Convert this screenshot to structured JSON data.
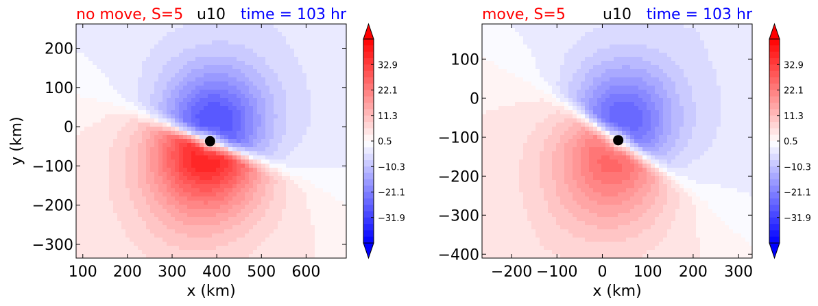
{
  "chart_data": [
    {
      "type": "heatmap",
      "title_left": "no move, S=5",
      "title_center": "u10",
      "title_right": "time = 103 hr",
      "title_colors": {
        "left": "#ff0000",
        "center": "#000000",
        "right": "#0000ff"
      },
      "xlabel": "x (km)",
      "ylabel": "y (km)",
      "xlim": [
        85,
        690
      ],
      "ylim": [
        -335,
        262
      ],
      "xticks": [
        100,
        200,
        300,
        400,
        500,
        600
      ],
      "yticks": [
        200,
        100,
        0,
        -100,
        -200,
        -300
      ],
      "center_marker": {
        "x": 385,
        "y": -37
      },
      "colorbar": {
        "ticks": [
          "32.9",
          "22.1",
          "11.3",
          "0.5",
          "−10.3",
          "−21.1",
          "−31.9"
        ],
        "min": -42.7,
        "max": 43.7,
        "extend": "both"
      },
      "field": {
        "max_positive": 31,
        "max_negative": -21,
        "angle_deg": -22
      }
    },
    {
      "type": "heatmap",
      "title_left": "move, S=5",
      "title_center": "u10",
      "title_right": "time = 103 hr",
      "title_colors": {
        "left": "#ff0000",
        "center": "#000000",
        "right": "#0000ff"
      },
      "xlabel": "x (km)",
      "ylabel": "",
      "xlim": [
        -265,
        330
      ],
      "ylim": [
        -410,
        190
      ],
      "xticks": [
        -200,
        -100,
        0,
        100,
        200,
        300
      ],
      "yticks": [
        100,
        0,
        -100,
        -200,
        -300,
        -400
      ],
      "center_marker": {
        "x": 35,
        "y": -108
      },
      "colorbar": {
        "ticks": [
          "32.9",
          "22.1",
          "11.3",
          "0.5",
          "−10.3",
          "−21.1",
          "−31.9"
        ],
        "min": -42.7,
        "max": 43.7,
        "extend": "both"
      },
      "field": {
        "max_positive": 19,
        "max_negative": -18,
        "angle_deg": -35
      }
    }
  ]
}
